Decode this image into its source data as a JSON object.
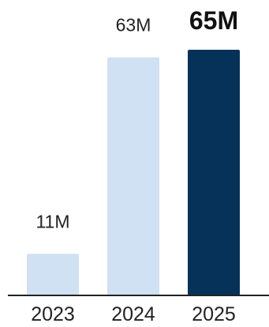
{
  "chart_data": {
    "type": "bar",
    "categories": [
      "2023",
      "2024",
      "2025"
    ],
    "values": [
      11,
      63,
      65
    ],
    "data_labels": [
      "11M",
      "63M",
      "65M"
    ],
    "highlight_index": 2,
    "ylim": [
      0,
      65
    ],
    "grid": false,
    "legend": "none",
    "colors": {
      "bar": "#cfe1f3",
      "bar_highlight": "#06325a",
      "axis": "#222222",
      "text": "#222222"
    }
  }
}
